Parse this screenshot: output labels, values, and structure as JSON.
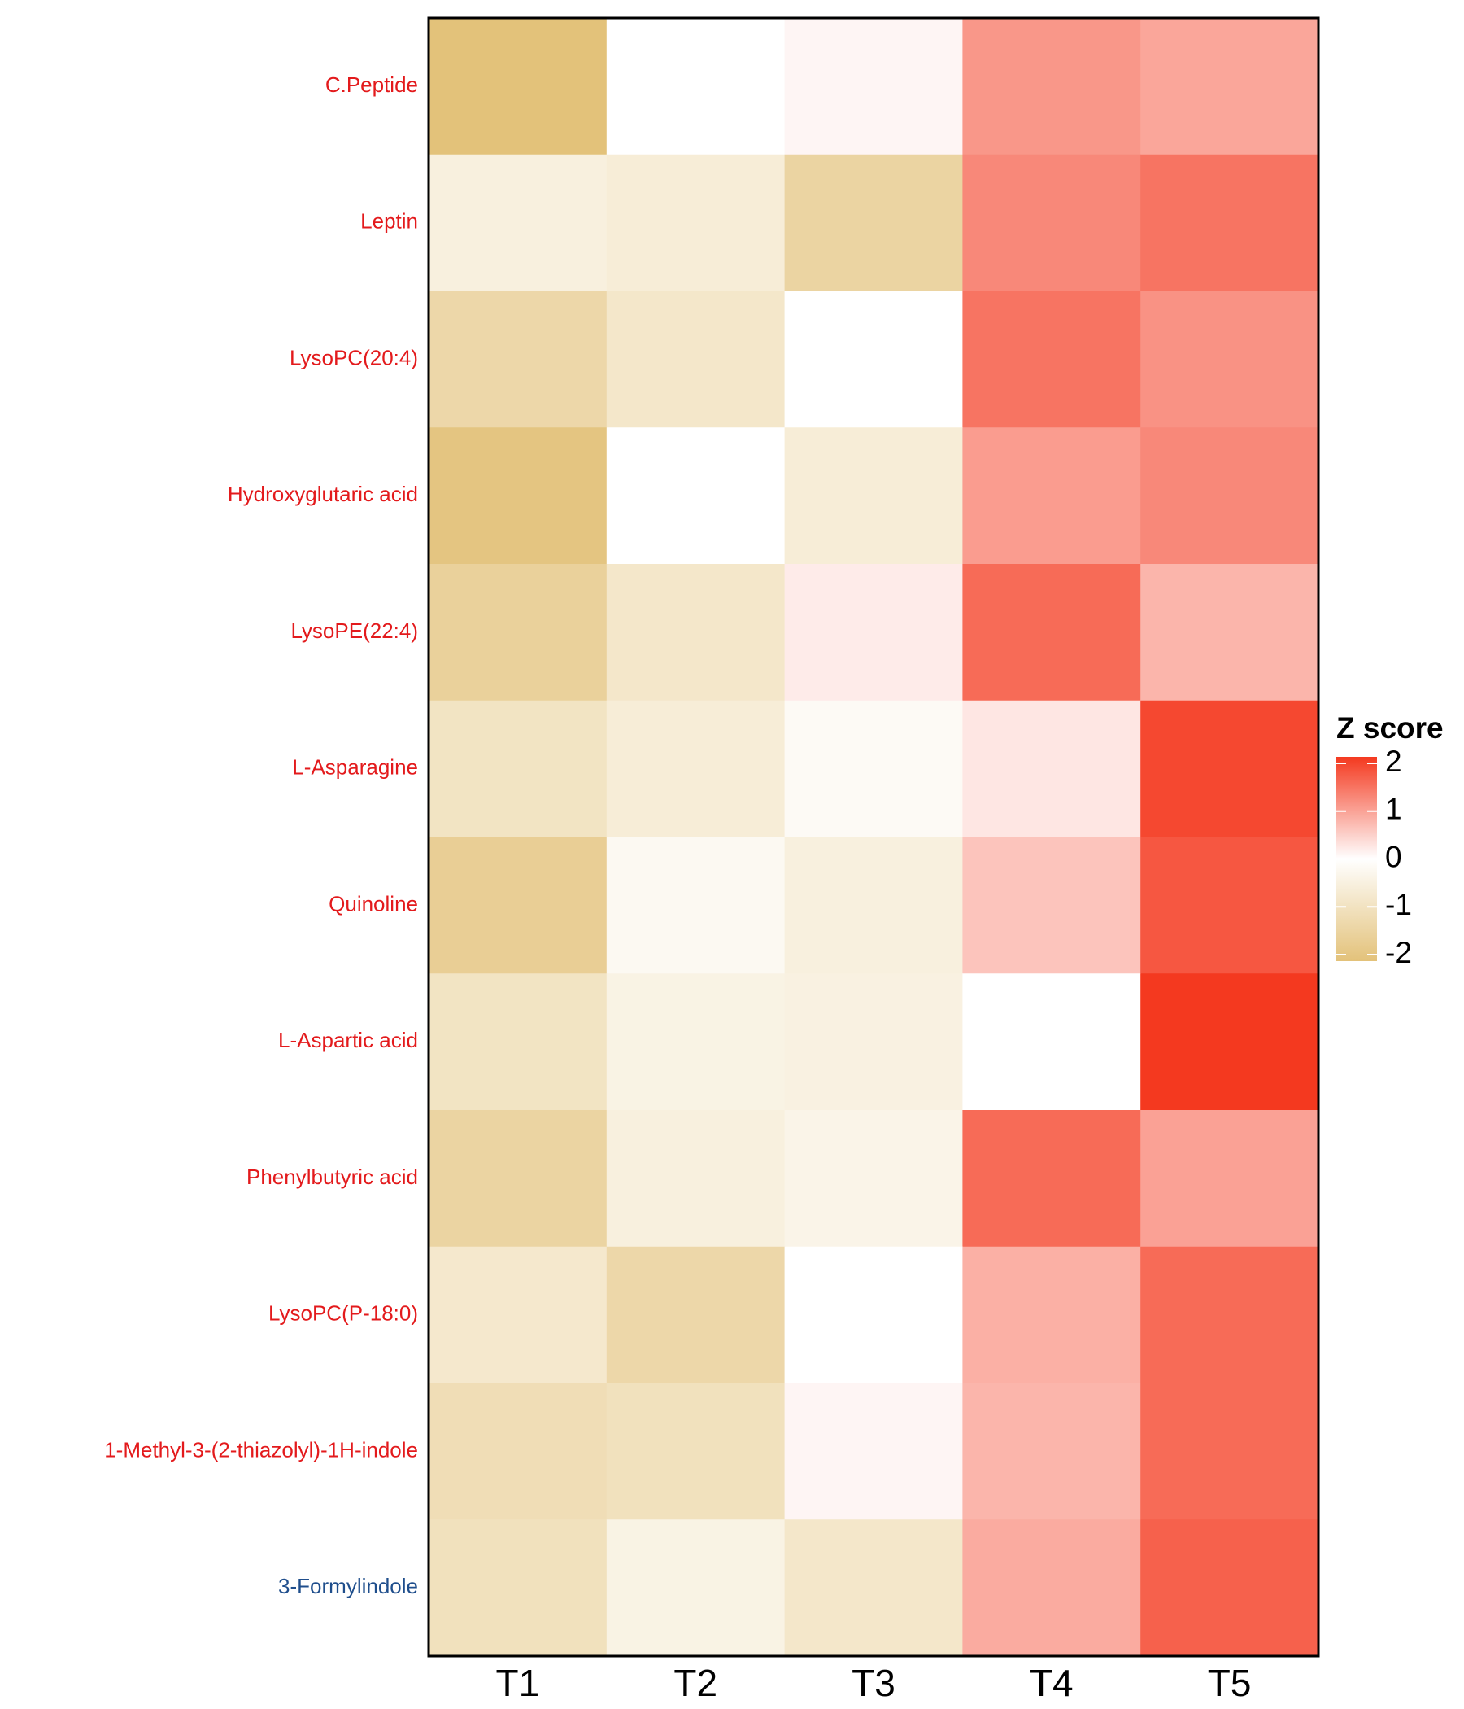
{
  "chart_data": {
    "type": "heatmap",
    "title": "",
    "xlabel": "",
    "ylabel": "",
    "x_categories": [
      "T1",
      "T2",
      "T3",
      "T4",
      "T5"
    ],
    "rows": [
      {
        "label": "C.Peptide",
        "label_color": "#e31a1c",
        "values": [
          -2.0,
          0.0,
          0.1,
          1.05,
          0.9
        ]
      },
      {
        "label": "Leptin",
        "label_color": "#e31a1c",
        "values": [
          -0.5,
          -0.6,
          -1.4,
          1.2,
          1.4
        ]
      },
      {
        "label": "LysoPC(20:4)",
        "label_color": "#e31a1c",
        "values": [
          -1.3,
          -0.8,
          0.0,
          1.4,
          1.1
        ]
      },
      {
        "label": "Hydroxyglutaric acid",
        "label_color": "#e31a1c",
        "values": [
          -1.9,
          0.0,
          -0.6,
          1.0,
          1.2
        ]
      },
      {
        "label": "LysoPE(22:4)",
        "label_color": "#e31a1c",
        "values": [
          -1.5,
          -0.8,
          0.2,
          1.5,
          0.75
        ]
      },
      {
        "label": "L-Asparagine",
        "label_color": "#e31a1c",
        "values": [
          -0.9,
          -0.6,
          -0.15,
          0.25,
          1.85
        ]
      },
      {
        "label": "Quinoline",
        "label_color": "#e31a1c",
        "values": [
          -1.6,
          -0.2,
          -0.5,
          0.6,
          1.7
        ]
      },
      {
        "label": "L-Aspartic acid",
        "label_color": "#e31a1c",
        "values": [
          -0.9,
          -0.4,
          -0.45,
          0.0,
          2.0
        ]
      },
      {
        "label": "Phenylbutyric acid",
        "label_color": "#e31a1c",
        "values": [
          -1.4,
          -0.5,
          -0.35,
          1.5,
          0.95
        ]
      },
      {
        "label": "LysoPC(P-18:0)",
        "label_color": "#e31a1c",
        "values": [
          -0.75,
          -1.3,
          0.0,
          0.8,
          1.5
        ]
      },
      {
        "label": "1-Methyl-3-(2-thiazolyl)-1H-indole",
        "label_color": "#e31a1c",
        "values": [
          -1.1,
          -1.0,
          0.1,
          0.75,
          1.5
        ]
      },
      {
        "label": "3-Formylindole",
        "label_color": "#1f4e8c",
        "values": [
          -1.0,
          -0.4,
          -0.8,
          0.85,
          1.6
        ]
      }
    ],
    "legend": {
      "title": "Z score",
      "placement": "right",
      "ticks": [
        2,
        1,
        0,
        -1,
        -2
      ],
      "range": [
        -2,
        2
      ],
      "colors": {
        "low": "#e3c27a",
        "mid": "#ffffff",
        "high": "#f4391f"
      }
    }
  }
}
